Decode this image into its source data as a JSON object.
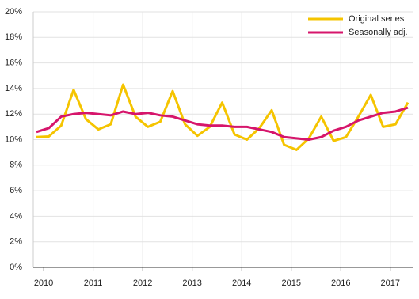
{
  "chart_data": {
    "type": "line",
    "categories": [
      null,
      "2010",
      null,
      null,
      null,
      "2011",
      null,
      null,
      null,
      "2012",
      null,
      null,
      null,
      "2013",
      null,
      null,
      null,
      "2014",
      null,
      null,
      null,
      "2015",
      null,
      null,
      null,
      "2016",
      null,
      null,
      null,
      "2017",
      null
    ],
    "series": [
      {
        "name": "Original series",
        "color": "#f5c400",
        "values": [
          10.2,
          10.25,
          11.1,
          13.9,
          11.6,
          10.8,
          11.2,
          14.3,
          11.8,
          11.0,
          11.4,
          13.8,
          11.2,
          10.3,
          11.0,
          12.9,
          10.4,
          10.0,
          10.9,
          12.3,
          9.6,
          9.2,
          10.1,
          11.8,
          9.9,
          10.2,
          11.8,
          13.5,
          11.0,
          11.2,
          12.9
        ]
      },
      {
        "name": "Seasonally adj.",
        "color": "#d6156b",
        "values": [
          10.6,
          10.9,
          11.8,
          12.0,
          12.1,
          12.0,
          11.9,
          12.2,
          12.0,
          12.1,
          11.9,
          11.8,
          11.5,
          11.2,
          11.1,
          11.1,
          11.0,
          11.0,
          10.8,
          10.6,
          10.2,
          10.1,
          10.0,
          10.2,
          10.7,
          11.0,
          11.5,
          11.8,
          12.1,
          12.2,
          12.5
        ]
      }
    ],
    "ylim": [
      0,
      20
    ],
    "yticks": [
      {
        "value": 0,
        "label": "0%"
      },
      {
        "value": 2,
        "label": "2%"
      },
      {
        "value": 4,
        "label": "4%"
      },
      {
        "value": 6,
        "label": "6%"
      },
      {
        "value": 8,
        "label": "8%"
      },
      {
        "value": 10,
        "label": "10%"
      },
      {
        "value": 12,
        "label": "12%"
      },
      {
        "value": 14,
        "label": "14%"
      },
      {
        "value": 16,
        "label": "16%"
      },
      {
        "value": 18,
        "label": "18%"
      },
      {
        "value": 20,
        "label": "20%"
      }
    ],
    "grid": true,
    "legend": "top-right"
  }
}
